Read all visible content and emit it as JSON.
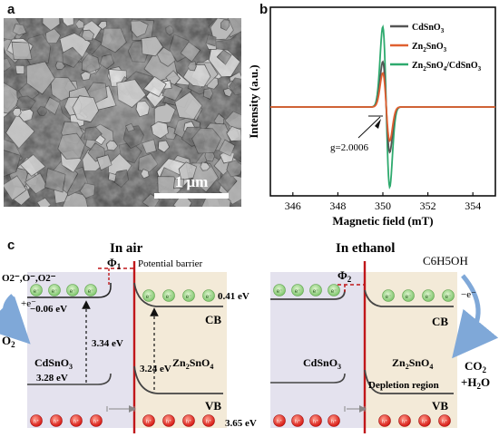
{
  "panels": {
    "a": "a",
    "b": "b",
    "c": "c"
  },
  "sem": {
    "scale_label": "1 μm"
  },
  "chart_data": {
    "type": "line",
    "title": "",
    "xlabel": "Magnetic field (mT)",
    "ylabel": "Intensity (a.u.)",
    "xlim": [
      345,
      355
    ],
    "xticks": [
      346,
      348,
      350,
      352,
      354
    ],
    "ylim": [
      -1,
      1
    ],
    "grid": false,
    "legend_position": "top-right",
    "annotation": "g=2.0006",
    "series": [
      {
        "name": "CdSnO3",
        "label_main": "CdSnO",
        "label_sub": "3",
        "color": "#555555",
        "amplitude": 0.48
      },
      {
        "name": "Zn2SnO3",
        "label_main": "Zn",
        "label_sub": "2",
        "label_main2": "SnO",
        "label_sub2": "3",
        "color": "#e06030",
        "amplitude": 0.36
      },
      {
        "name": "Zn2SnO4/CdSnO3",
        "label_main": "Zn",
        "label_sub": "2",
        "label_main2": "SnO",
        "label_sub2": "4",
        "label_main3": "/CdSnO",
        "label_sub3": "3",
        "color": "#2eaa6e",
        "amplitude": 0.85
      }
    ],
    "center": 350.15,
    "width": 0.22
  },
  "band_diagram": {
    "air": {
      "title": "In air",
      "phi": "Φ",
      "phi_sub": "1",
      "barrier": "Potential barrier",
      "o2_species": "O2⁻,O⁻,O2⁻",
      "electron_in": "+e⁻",
      "o2": "O",
      "o2_sub": "2",
      "cb_left": "−0.06 eV",
      "gap_left": "3.34 eV",
      "vb_left": "3.28 eV",
      "gap_right": "3.24 eV",
      "cb_right_val": "0.41 eV",
      "vb_right_val": "3.65 eV",
      "left_material": "CdSnO",
      "left_material_sub": "3",
      "right_material": "Zn",
      "right_material_sub": "2",
      "right_material2": "SnO",
      "right_material2_sub": "4",
      "cb": "CB",
      "vb": "VB",
      "electron": "e⁻",
      "hole": "h⁺"
    },
    "ethanol": {
      "title": "In ethanol",
      "phi": "Φ",
      "phi_sub": "2",
      "gas": "C6H5OH",
      "electron_out": "−e⁻",
      "co2": "CO",
      "co2_sub": "2",
      "h2o": "+H",
      "h2o_sub": "2",
      "h2o_end": "O",
      "left_material": "CdSnO",
      "left_material_sub": "3",
      "right_material": "Zn",
      "right_material_sub": "2",
      "right_material2": "SnO",
      "right_material2_sub": "4",
      "depletion": "Depletion region",
      "cb": "CB",
      "vb": "VB"
    }
  }
}
